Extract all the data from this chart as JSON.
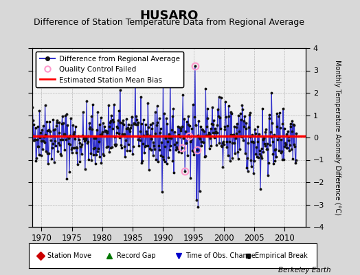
{
  "title": "HUSARO",
  "subtitle": "Difference of Station Temperature Data from Regional Average",
  "ylabel_right": "Monthly Temperature Anomaly Difference (°C)",
  "xlim": [
    1968.5,
    2013.5
  ],
  "ylim": [
    -4,
    4
  ],
  "yticks": [
    -4,
    -3,
    -2,
    -1,
    0,
    1,
    2,
    3,
    4
  ],
  "xticks": [
    1970,
    1975,
    1980,
    1985,
    1990,
    1995,
    2000,
    2005,
    2010
  ],
  "bias_value": 0.05,
  "fig_facecolor": "#d8d8d8",
  "plot_facecolor": "#f0f0f0",
  "line_color": "#3333cc",
  "dot_color": "#111111",
  "bias_color": "#ff0000",
  "qc_color": "#ff99cc",
  "title_fontsize": 13,
  "subtitle_fontsize": 9,
  "watermark": "Berkeley Earth",
  "legend1_items": [
    {
      "label": "Difference from Regional Average",
      "color": "#3333cc",
      "lw": 1.5,
      "marker": "o",
      "ms": 4
    },
    {
      "label": "Quality Control Failed",
      "color": "#ff99cc",
      "marker": "o",
      "ms": 6,
      "lw": 0
    },
    {
      "label": "Estimated Station Mean Bias",
      "color": "#ff0000",
      "lw": 2,
      "marker": null
    }
  ],
  "legend2_items": [
    {
      "label": "Station Move",
      "color": "#cc0000",
      "marker": "D",
      "ms": 6
    },
    {
      "label": "Record Gap",
      "color": "#007700",
      "marker": "^",
      "ms": 6
    },
    {
      "label": "Time of Obs. Change",
      "color": "#0000cc",
      "marker": "v",
      "ms": 6
    },
    {
      "label": "Empirical Break",
      "color": "#111111",
      "marker": "s",
      "ms": 4
    }
  ],
  "seed": 42,
  "n_months": 528,
  "start_year": 1968.0
}
